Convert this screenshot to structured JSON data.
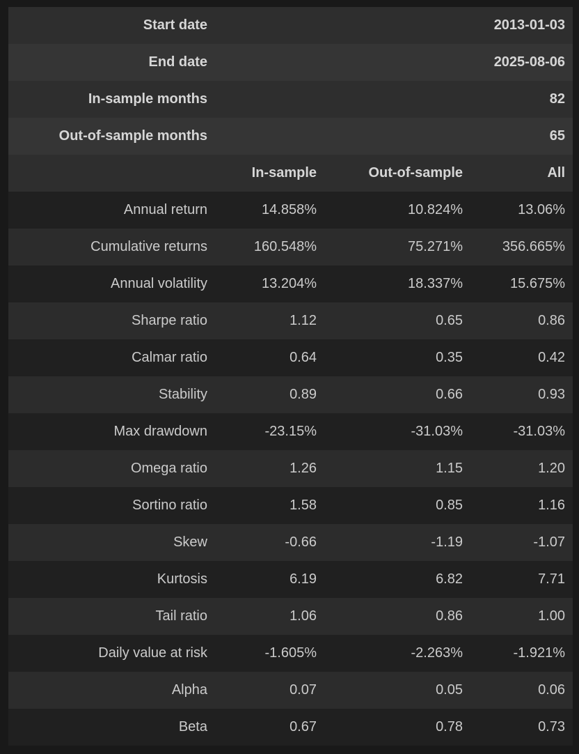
{
  "theme": {
    "page_bg": "#191919",
    "summary_row_odd_bg": "#2e2e2e",
    "summary_row_even_bg": "#353535",
    "stats_header_bg": "#2e2e2e",
    "stats_row_odd_bg": "#202020",
    "stats_row_even_bg": "#2c2c2c",
    "text_regular": "#cbcbcb",
    "text_bold": "#d6d6d6"
  },
  "summary_table": {
    "rows": [
      {
        "label": "Start date",
        "value": "2013-01-03"
      },
      {
        "label": "End date",
        "value": "2025-08-06"
      },
      {
        "label": "In-sample months",
        "value": "82"
      },
      {
        "label": "Out-of-sample months",
        "value": "65"
      }
    ]
  },
  "stats_table": {
    "columns": [
      "In-sample",
      "Out-of-sample",
      "All"
    ],
    "rows": [
      {
        "label": "Annual return",
        "values": [
          "14.858%",
          "10.824%",
          "13.06%"
        ]
      },
      {
        "label": "Cumulative returns",
        "values": [
          "160.548%",
          "75.271%",
          "356.665%"
        ]
      },
      {
        "label": "Annual volatility",
        "values": [
          "13.204%",
          "18.337%",
          "15.675%"
        ]
      },
      {
        "label": "Sharpe ratio",
        "values": [
          "1.12",
          "0.65",
          "0.86"
        ]
      },
      {
        "label": "Calmar ratio",
        "values": [
          "0.64",
          "0.35",
          "0.42"
        ]
      },
      {
        "label": "Stability",
        "values": [
          "0.89",
          "0.66",
          "0.93"
        ]
      },
      {
        "label": "Max drawdown",
        "values": [
          "-23.15%",
          "-31.03%",
          "-31.03%"
        ]
      },
      {
        "label": "Omega ratio",
        "values": [
          "1.26",
          "1.15",
          "1.20"
        ]
      },
      {
        "label": "Sortino ratio",
        "values": [
          "1.58",
          "0.85",
          "1.16"
        ]
      },
      {
        "label": "Skew",
        "values": [
          "-0.66",
          "-1.19",
          "-1.07"
        ]
      },
      {
        "label": "Kurtosis",
        "values": [
          "6.19",
          "6.82",
          "7.71"
        ]
      },
      {
        "label": "Tail ratio",
        "values": [
          "1.06",
          "0.86",
          "1.00"
        ]
      },
      {
        "label": "Daily value at risk",
        "values": [
          "-1.605%",
          "-2.263%",
          "-1.921%"
        ]
      },
      {
        "label": "Alpha",
        "values": [
          "0.07",
          "0.05",
          "0.06"
        ]
      },
      {
        "label": "Beta",
        "values": [
          "0.67",
          "0.78",
          "0.73"
        ]
      }
    ]
  }
}
